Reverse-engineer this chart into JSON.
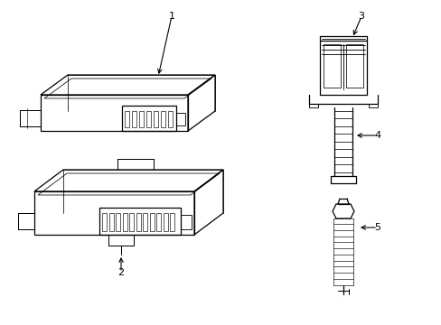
{
  "background_color": "#ffffff",
  "line_color": "#000000",
  "lw": 0.9,
  "fig_w": 4.89,
  "fig_h": 3.6,
  "dpi": 100
}
